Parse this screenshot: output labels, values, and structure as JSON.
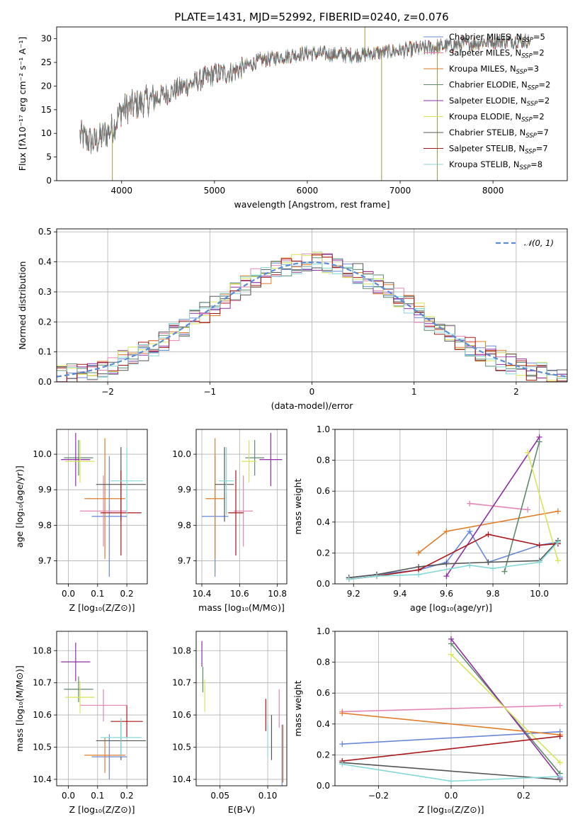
{
  "title": "PLATE=1431, MJD=52992, FIBERID=0240, z=0.076",
  "colors": [
    "#6a88d6",
    "#e386b6",
    "#e07d2a",
    "#5f8a6c",
    "#8e2fa2",
    "#d8e45a",
    "#555555",
    "#a8181a",
    "#85d8d8"
  ],
  "models": [
    {
      "label": "Chabrier MILES, N",
      "sub": "SSP",
      "suffix": "=5"
    },
    {
      "label": "Salpeter MILES, N",
      "sub": "SSP",
      "suffix": "=2"
    },
    {
      "label": "Kroupa MILES, N",
      "sub": "SSP",
      "suffix": "=3"
    },
    {
      "label": "Chabrier ELODIE, N",
      "sub": "SSP",
      "suffix": "=2"
    },
    {
      "label": "Salpeter ELODIE, N",
      "sub": "SSP",
      "suffix": "=2"
    },
    {
      "label": "Kroupa ELODIE, N",
      "sub": "SSP",
      "suffix": "=2"
    },
    {
      "label": "Chabrier STELIB, N",
      "sub": "SSP",
      "suffix": "=7"
    },
    {
      "label": "Salpeter STELIB, N",
      "sub": "SSP",
      "suffix": "=7"
    },
    {
      "label": "Kroupa STELIB, N",
      "sub": "SSP",
      "suffix": "=8"
    }
  ],
  "chart_data": [
    {
      "id": "spectrum",
      "type": "line",
      "xlabel": "wavelength [Angstrom, rest frame]",
      "ylabel": "Flux [fλ10⁻¹⁷ erg cm⁻² s⁻¹ A⁻¹]",
      "xlim": [
        3300,
        8800
      ],
      "ylim": [
        0,
        32.5
      ],
      "xticks": [
        4000,
        5000,
        6000,
        7000,
        8000
      ],
      "yticks": [
        0,
        5,
        10,
        15,
        20,
        25,
        30
      ],
      "grid": false,
      "legend": "top-right",
      "continuum": {
        "x": [
          3550,
          3700,
          3900,
          4000,
          4300,
          4500,
          5000,
          5200,
          5500,
          6000,
          6500,
          7000,
          7500,
          8000,
          8400
        ],
        "y": [
          9.5,
          8,
          11,
          15,
          17,
          18.5,
          22.5,
          23,
          25.5,
          27,
          26.5,
          27.5,
          28.5,
          29.5,
          29.5
        ]
      },
      "features": [
        {
          "x": 3900,
          "y": 0
        },
        {
          "x": 6800,
          "y": 0
        },
        {
          "x": 7400,
          "y": 0
        },
        {
          "x": 6620,
          "y": 32.5
        }
      ]
    },
    {
      "id": "residuals",
      "type": "line",
      "xlabel": "(data-model)/error",
      "ylabel": "Normed distribution",
      "xlim": [
        -2.5,
        2.5
      ],
      "ylim": [
        0,
        0.51
      ],
      "xticks": [
        -2,
        -1,
        0,
        1,
        2
      ],
      "yticks": [
        0,
        0.1,
        0.2,
        0.3,
        0.4,
        0.5
      ],
      "grid": true,
      "legend": "top-right",
      "reference": {
        "name": "𝒩(0, 1)",
        "mean": 0,
        "sigma": 1,
        "color": "#5b8bd6"
      },
      "bin_width": 0.1
    },
    {
      "id": "age_vs_Z",
      "type": "scatter",
      "xlabel": "Z [log₁₀(Z/Z⊙)]",
      "ylabel": "age  [log₁₀(age/yr)]",
      "xlim": [
        -0.04,
        0.27
      ],
      "ylim": [
        9.635,
        10.07
      ],
      "xticks": [
        0.0,
        0.1,
        0.2
      ],
      "yticks": [
        9.7,
        9.8,
        9.9,
        10.0
      ],
      "grid": true,
      "points": [
        {
          "x": 0.14,
          "xerr": 0.06,
          "y": 9.825,
          "yerr": 0.17
        },
        {
          "x": 0.12,
          "xerr": 0.08,
          "y": 9.84,
          "yerr": 0.1
        },
        {
          "x": 0.125,
          "xerr": 0.07,
          "y": 9.875,
          "yerr": 0.17
        },
        {
          "x": 0.035,
          "xerr": 0.05,
          "y": 9.99,
          "yerr": 0.05
        },
        {
          "x": 0.025,
          "xerr": 0.05,
          "y": 9.985,
          "yerr": 0.075
        },
        {
          "x": 0.04,
          "xerr": 0.05,
          "y": 9.98,
          "yerr": 0.06
        },
        {
          "x": 0.18,
          "xerr": 0.085,
          "y": 9.915,
          "yerr": 0.105
        },
        {
          "x": 0.18,
          "xerr": 0.07,
          "y": 9.835,
          "yerr": 0.12
        },
        {
          "x": 0.2,
          "xerr": 0.055,
          "y": 9.925,
          "yerr": 0.095
        }
      ]
    },
    {
      "id": "age_vs_mass",
      "type": "scatter",
      "xlabel": "mass [log₁₀(M/M⊙)]",
      "ylabel": "",
      "xlim": [
        10.37,
        10.85
      ],
      "ylim": [
        9.635,
        10.07
      ],
      "xticks": [
        10.4,
        10.6,
        10.8
      ],
      "yticks": [
        9.7,
        9.8,
        9.9,
        10.0
      ],
      "grid": true,
      "points": [
        {
          "x": 10.47,
          "xerr": 0.07,
          "y": 9.825,
          "yerr": 0.17
        },
        {
          "x": 10.62,
          "xerr": 0.05,
          "y": 9.84,
          "yerr": 0.1
        },
        {
          "x": 10.47,
          "xerr": 0.05,
          "y": 9.875,
          "yerr": 0.17
        },
        {
          "x": 10.68,
          "xerr": 0.05,
          "y": 9.99,
          "yerr": 0.05
        },
        {
          "x": 10.765,
          "xerr": 0.06,
          "y": 9.985,
          "yerr": 0.075
        },
        {
          "x": 10.65,
          "xerr": 0.04,
          "y": 9.98,
          "yerr": 0.06
        },
        {
          "x": 10.52,
          "xerr": 0.05,
          "y": 9.915,
          "yerr": 0.105
        },
        {
          "x": 10.58,
          "xerr": 0.04,
          "y": 9.835,
          "yerr": 0.12
        },
        {
          "x": 10.53,
          "xerr": 0.04,
          "y": 9.925,
          "yerr": 0.095
        }
      ]
    },
    {
      "id": "weight_vs_age",
      "type": "line",
      "xlabel": "age  [log₁₀(age/yr)]",
      "ylabel": "mass weight",
      "xlim": [
        9.12,
        10.12
      ],
      "ylim": [
        0,
        1
      ],
      "xticks": [
        9.2,
        9.4,
        9.6,
        9.8,
        10.0
      ],
      "yticks": [
        0.0,
        0.2,
        0.4,
        0.6,
        0.8,
        1.0
      ],
      "grid": true,
      "series": [
        {
          "x": [
            9.18,
            9.3,
            9.48,
            9.6,
            9.7,
            9.78,
            10.0,
            10.08
          ],
          "y": [
            0.04,
            0.06,
            0.09,
            0.14,
            0.34,
            0.14,
            0.25,
            0.27
          ]
        },
        {
          "x": [
            9.7,
            9.95
          ],
          "y": [
            0.52,
            0.48
          ]
        },
        {
          "x": [
            9.48,
            9.6,
            10.08
          ],
          "y": [
            0.2,
            0.34,
            0.47
          ]
        },
        {
          "x": [
            9.85,
            10.0
          ],
          "y": [
            0.08,
            0.92
          ]
        },
        {
          "x": [
            9.6,
            10.0
          ],
          "y": [
            0.05,
            0.95
          ]
        },
        {
          "x": [
            9.95,
            10.08
          ],
          "y": [
            0.85,
            0.15
          ]
        },
        {
          "x": [
            9.18,
            9.3,
            9.48,
            9.6,
            9.78,
            10.0,
            10.08
          ],
          "y": [
            0.04,
            0.06,
            0.11,
            0.13,
            0.14,
            0.15,
            0.28
          ]
        },
        {
          "x": [
            9.18,
            9.3,
            9.48,
            9.78,
            10.0,
            10.08
          ],
          "y": [
            0.03,
            0.05,
            0.09,
            0.32,
            0.25,
            0.26
          ]
        },
        {
          "x": [
            9.18,
            9.3,
            9.48,
            9.7,
            9.8,
            10.0,
            10.08
          ],
          "y": [
            0.03,
            0.05,
            0.06,
            0.12,
            0.1,
            0.14,
            0.27
          ]
        }
      ]
    },
    {
      "id": "mass_vs_Z",
      "type": "scatter",
      "xlabel": "Z [log₁₀(Z/Z⊙)]",
      "ylabel": "mass [log₁₀(M/M⊙)]",
      "xlim": [
        -0.04,
        0.27
      ],
      "ylim": [
        10.38,
        10.86
      ],
      "xticks": [
        0.0,
        0.1,
        0.2
      ],
      "yticks": [
        10.4,
        10.5,
        10.6,
        10.7,
        10.8
      ],
      "grid": true,
      "points": [
        {
          "x": 0.14,
          "xerr": 0.06,
          "y": 10.47,
          "yerr": 0.07
        },
        {
          "x": 0.12,
          "xerr": 0.08,
          "y": 10.63,
          "yerr": 0.05
        },
        {
          "x": 0.125,
          "xerr": 0.07,
          "y": 10.475,
          "yerr": 0.055
        },
        {
          "x": 0.035,
          "xerr": 0.05,
          "y": 10.68,
          "yerr": 0.04
        },
        {
          "x": 0.025,
          "xerr": 0.05,
          "y": 10.765,
          "yerr": 0.06
        },
        {
          "x": 0.04,
          "xerr": 0.05,
          "y": 10.655,
          "yerr": 0.05
        },
        {
          "x": 0.18,
          "xerr": 0.085,
          "y": 10.52,
          "yerr": 0.06
        },
        {
          "x": 0.2,
          "xerr": 0.055,
          "y": 10.58,
          "yerr": 0.05
        },
        {
          "x": 0.18,
          "xerr": 0.07,
          "y": 10.53,
          "yerr": 0.06
        }
      ]
    },
    {
      "id": "mass_vs_EBV",
      "type": "scatter",
      "xlabel": "E(B-V)",
      "ylabel": "",
      "xlim": [
        0.025,
        0.12
      ],
      "ylim": [
        10.38,
        10.86
      ],
      "xticks": [
        0.05,
        0.1
      ],
      "yticks": [
        10.4,
        10.5,
        10.6,
        10.7,
        10.8
      ],
      "grid": true,
      "points": [
        {
          "x": 0.115,
          "xerr": 0,
          "y": 10.47,
          "yerr": 0.1
        },
        {
          "x": 0.112,
          "xerr": 0,
          "y": 10.62,
          "yerr": 0.06
        },
        {
          "x": 0.116,
          "xerr": 0,
          "y": 10.48,
          "yerr": 0.09
        },
        {
          "x": 0.032,
          "xerr": 0,
          "y": 10.71,
          "yerr": 0.04
        },
        {
          "x": 0.031,
          "xerr": 0,
          "y": 10.79,
          "yerr": 0.04
        },
        {
          "x": 0.034,
          "xerr": 0,
          "y": 10.66,
          "yerr": 0.05
        },
        {
          "x": 0.104,
          "xerr": 0,
          "y": 10.53,
          "yerr": 0.07
        },
        {
          "x": 0.098,
          "xerr": 0,
          "y": 10.6,
          "yerr": 0.05
        },
        {
          "x": 0.1,
          "xerr": 0,
          "y": 10.52,
          "yerr": 0.05
        }
      ]
    },
    {
      "id": "weight_vs_Z",
      "type": "line",
      "xlabel": "Z [log₁₀(Z/Z⊙)]",
      "ylabel": "mass weight",
      "xlim": [
        -0.32,
        0.32
      ],
      "ylim": [
        0,
        1
      ],
      "xticks": [
        -0.2,
        0.0,
        0.2
      ],
      "yticks": [
        0.0,
        0.2,
        0.4,
        0.6,
        0.8,
        1.0
      ],
      "grid": true,
      "series": [
        {
          "x": [
            -0.3,
            0.3
          ],
          "y": [
            0.27,
            0.35
          ]
        },
        {
          "x": [
            -0.3,
            0.3
          ],
          "y": [
            0.48,
            0.52
          ]
        },
        {
          "x": [
            -0.3,
            0.3
          ],
          "y": [
            0.47,
            0.33
          ]
        },
        {
          "x": [
            0.0,
            0.3
          ],
          "y": [
            0.92,
            0.08
          ]
        },
        {
          "x": [
            0.0,
            0.3
          ],
          "y": [
            0.95,
            0.05
          ]
        },
        {
          "x": [
            0.0,
            0.3
          ],
          "y": [
            0.85,
            0.15
          ]
        },
        {
          "x": [
            -0.3,
            0.3
          ],
          "y": [
            0.15,
            0.04
          ]
        },
        {
          "x": [
            -0.3,
            0.3
          ],
          "y": [
            0.16,
            0.32
          ]
        },
        {
          "x": [
            -0.3,
            0.0,
            0.3
          ],
          "y": [
            0.14,
            0.03,
            0.06
          ]
        }
      ]
    }
  ]
}
